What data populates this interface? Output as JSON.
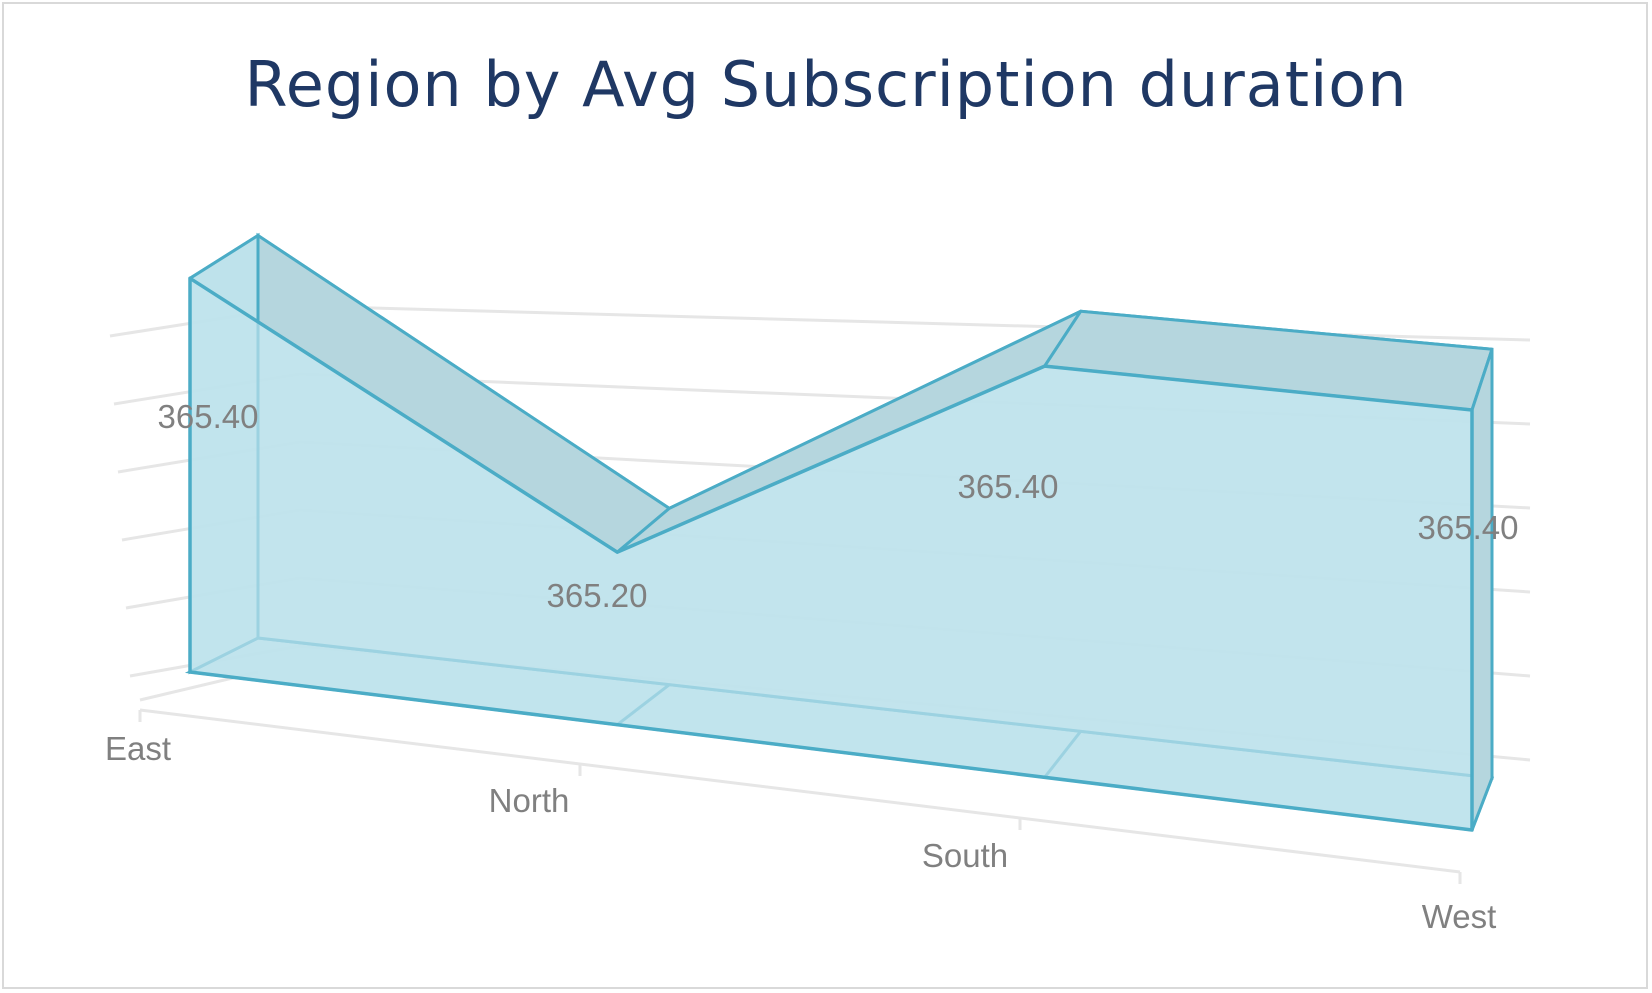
{
  "colors": {
    "title": "#1f3864",
    "fill": "#bfe3ec",
    "top_face": "#b5d6de",
    "stroke": "#4bacc6",
    "grid": "#e6e6e6",
    "label": "#808080"
  },
  "chart_data": {
    "type": "area",
    "view": "3d",
    "title": "Region by Avg Subscription duration",
    "categories": [
      "East",
      "North",
      "South",
      "West"
    ],
    "values": [
      365.4,
      365.2,
      365.4,
      365.4
    ],
    "data_labels": [
      "365.40",
      "365.20",
      "365.40",
      "365.40"
    ],
    "ylim": [
      365.05,
      365.45
    ],
    "grid": true,
    "legend": "none"
  }
}
